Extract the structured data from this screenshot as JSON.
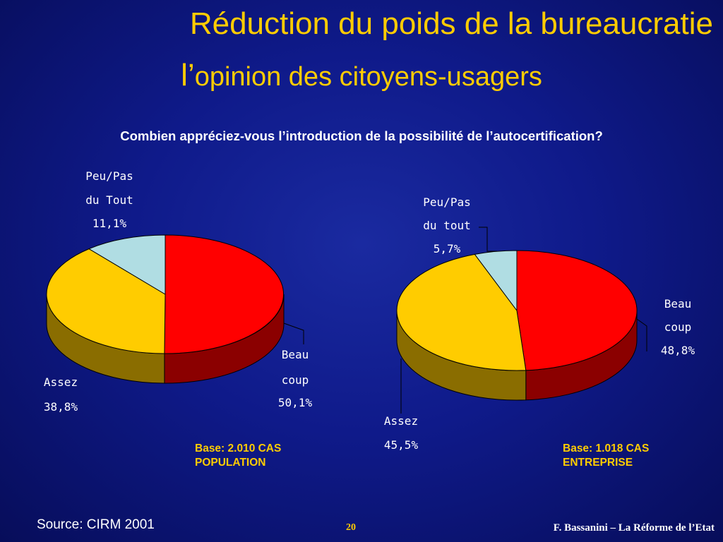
{
  "slide": {
    "title_line1": "Réduction du poids de la bureaucratie",
    "title_line2_lead": "l’",
    "title_line2_rest": "opinion des citoyens-usagers",
    "question": "Combien appréciez-vous l’introduction de la possibilité de l’autocertification?",
    "source": "Source: CIRM 2001",
    "page_number": "20",
    "footer": "F. Bassanini – La Réforme de l’Etat"
  },
  "chart_data": [
    {
      "type": "pie",
      "title": "",
      "base_line1": "Base: 2.010 CAS",
      "base_line2": "POPULATION",
      "slices": [
        {
          "name_lines": [
            "Beau",
            "coup"
          ],
          "value_label": "50,1%",
          "value": 50.1,
          "color": "#ff0000",
          "side_color": "#8b0000"
        },
        {
          "name_lines": [
            "Assez"
          ],
          "value_label": "38,8%",
          "value": 38.8,
          "color": "#ffcc00",
          "side_color": "#8a6d00"
        },
        {
          "name_lines": [
            "Peu/Pas",
            "du Tout"
          ],
          "value_label": "11,1%",
          "value": 11.1,
          "color": "#b0dde3",
          "side_color": "#6d8d92"
        }
      ]
    },
    {
      "type": "pie",
      "title": "",
      "base_line1": "Base: 1.018 CAS",
      "base_line2": "ENTREPRISE",
      "slices": [
        {
          "name_lines": [
            "Beau",
            "coup"
          ],
          "value_label": "48,8%",
          "value": 48.8,
          "color": "#ff0000",
          "side_color": "#8b0000"
        },
        {
          "name_lines": [
            "Assez"
          ],
          "value_label": "45,5%",
          "value": 45.5,
          "color": "#ffcc00",
          "side_color": "#8a6d00"
        },
        {
          "name_lines": [
            "Peu/Pas",
            "du tout"
          ],
          "value_label": "5,7%",
          "value": 5.7,
          "color": "#b0dde3",
          "side_color": "#6d8d92"
        }
      ]
    }
  ]
}
